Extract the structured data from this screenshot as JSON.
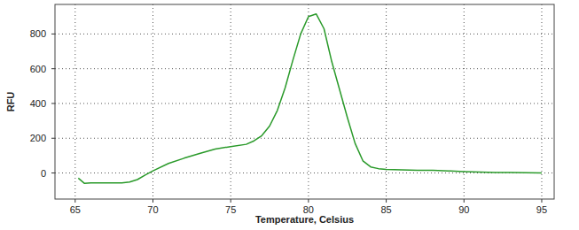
{
  "chart_data": {
    "type": "line",
    "x_label": "Temperature, Celsius",
    "y_label": "RFU",
    "x": [
      65.2,
      65.6,
      66,
      67,
      68,
      68.5,
      69,
      69.5,
      70,
      71,
      72,
      73,
      74,
      75,
      76,
      76.5,
      77,
      77.5,
      78,
      78.5,
      79,
      79.5,
      80,
      80.5,
      81,
      81.5,
      82,
      82.5,
      83,
      83.5,
      84,
      84.5,
      85,
      86,
      87,
      88,
      89,
      90,
      91,
      92,
      93,
      94,
      95
    ],
    "series": [
      {
        "name": "RFU",
        "color": "#2a9a2a",
        "values": [
          -30,
          -60,
          -57,
          -57,
          -57,
          -52,
          -38,
          -12,
          12,
          55,
          85,
          112,
          138,
          152,
          165,
          185,
          215,
          270,
          360,
          490,
          650,
          800,
          900,
          915,
          830,
          640,
          480,
          320,
          170,
          70,
          35,
          25,
          20,
          18,
          15,
          15,
          12,
          8,
          5,
          3,
          3,
          2,
          0
        ]
      }
    ],
    "xlim": [
      63.7,
      95.8
    ],
    "ylim": [
      -150,
      970
    ],
    "xticks": [
      65,
      70,
      75,
      80,
      85,
      90,
      95
    ],
    "yticks": [
      0,
      200,
      400,
      600,
      800
    ],
    "grid": true
  }
}
